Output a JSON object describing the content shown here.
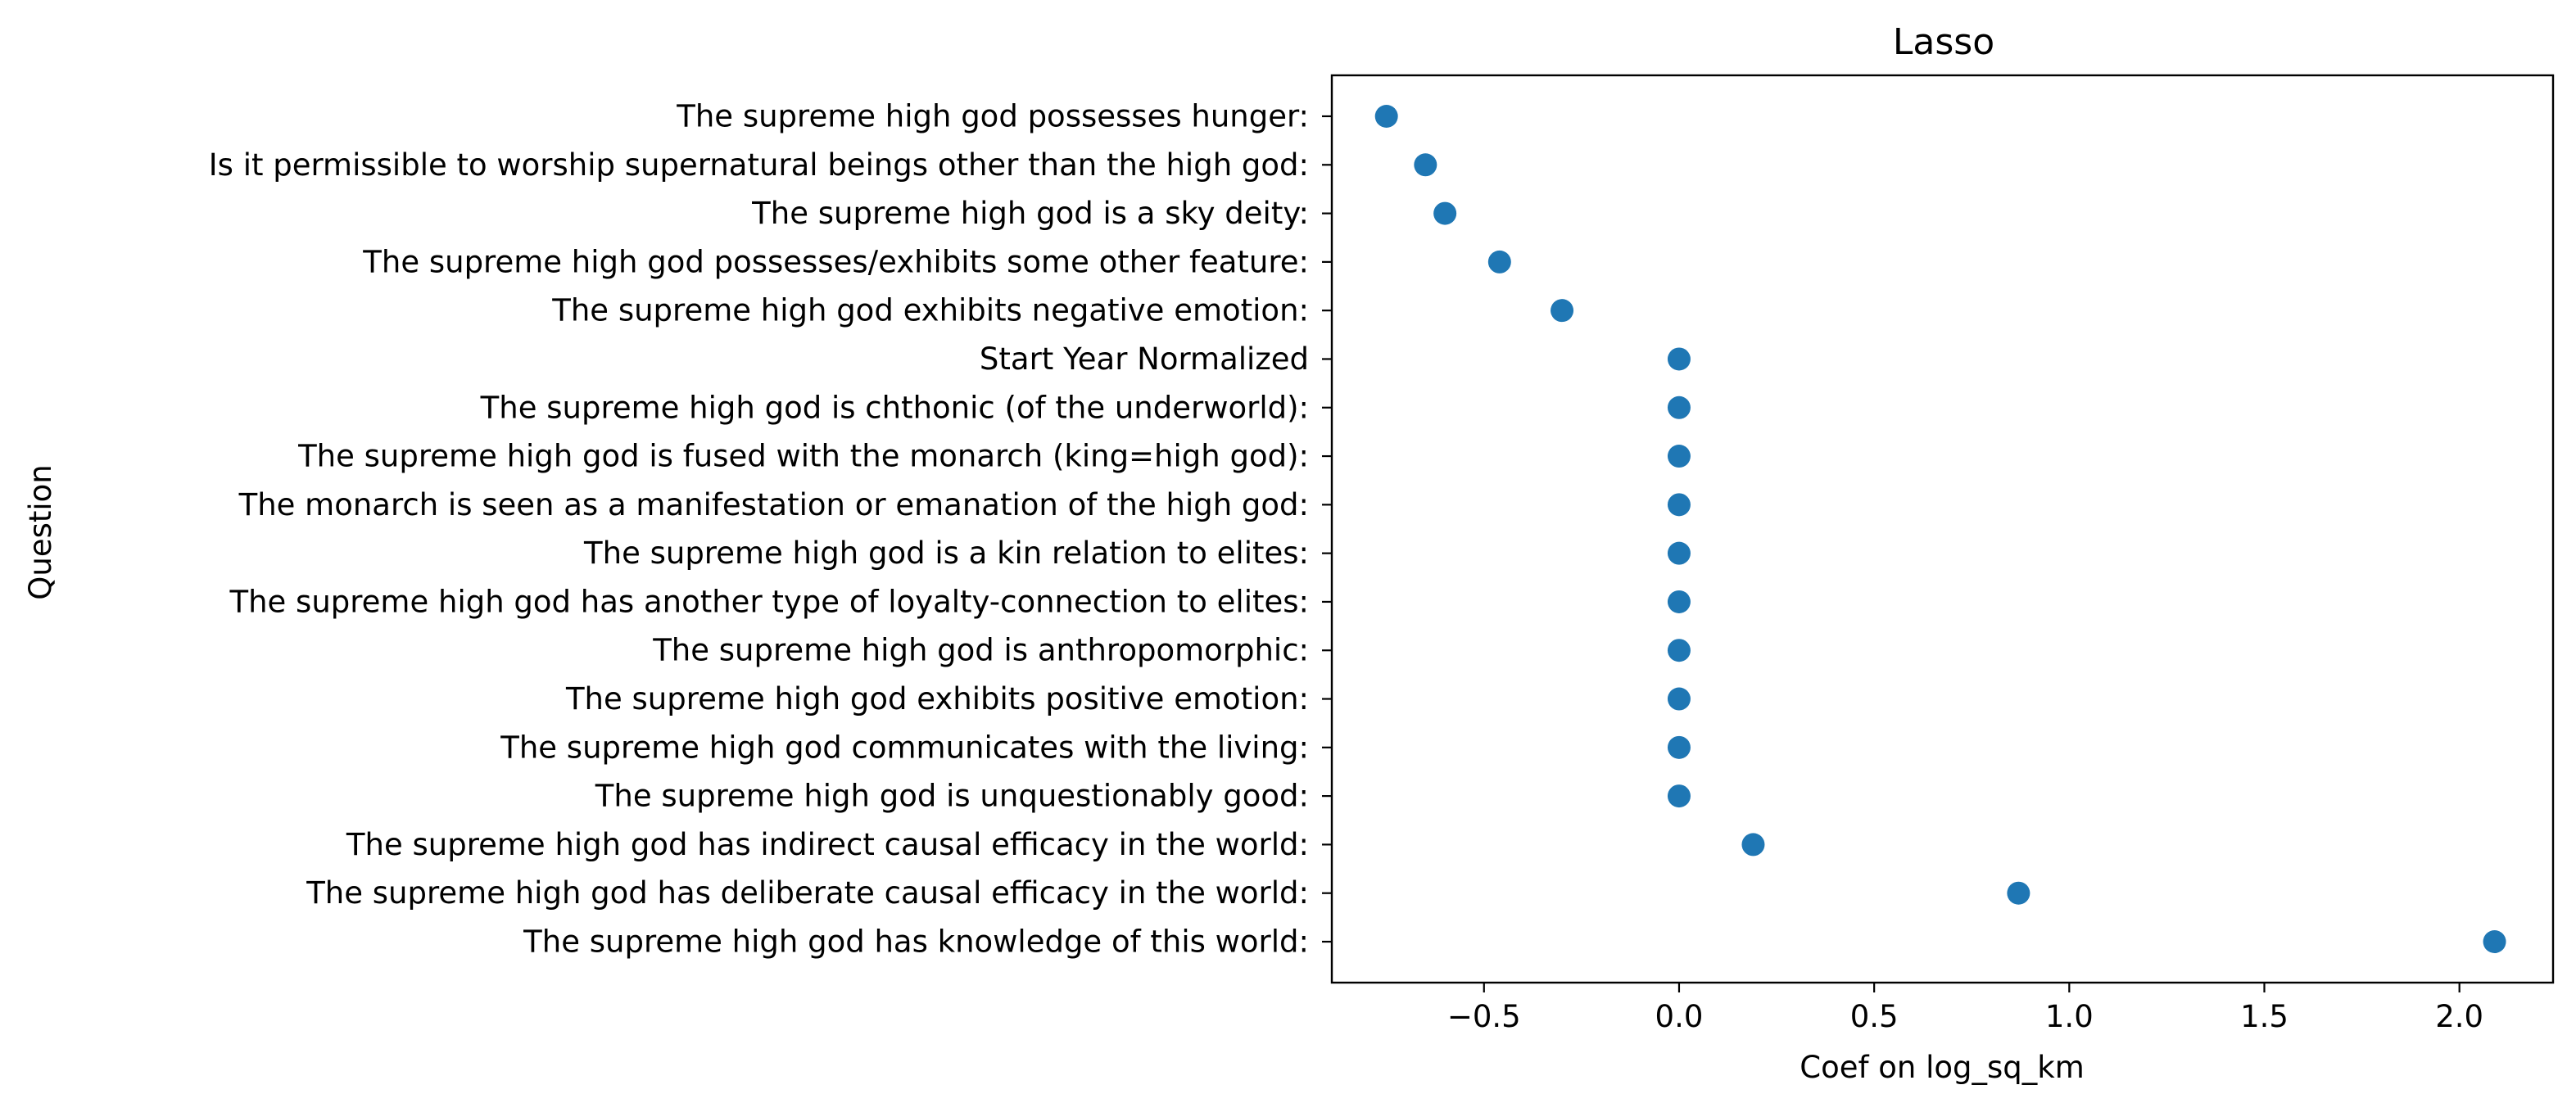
{
  "chart_data": {
    "type": "scatter",
    "title": "Lasso",
    "xlabel": "Coef on log_sq_km",
    "ylabel": "Question",
    "xlim": [
      -0.89,
      2.24
    ],
    "xticks": [
      -0.5,
      0.0,
      0.5,
      1.0,
      1.5,
      2.0
    ],
    "xtick_labels": [
      "−0.5",
      "0.0",
      "0.5",
      "1.0",
      "1.5",
      "2.0"
    ],
    "grid": false,
    "legend": "none",
    "marker_color": "#1f77b4",
    "categories": [
      "The supreme high god possesses hunger:",
      "Is it permissible to worship supernatural beings other than the high god:",
      "The supreme high god is a sky deity:",
      "The supreme high god possesses/exhibits some other feature:",
      "The supreme high god exhibits negative emotion:",
      "Start Year Normalized",
      "The supreme high god is chthonic (of the underworld):",
      "The supreme high god is fused with the monarch (king=high god):",
      "The monarch is seen as a manifestation or emanation of the high god:",
      "The supreme high god is a kin relation to elites:",
      "The supreme high god has another type of loyalty-connection to elites:",
      "The supreme high god is anthropomorphic:",
      "The supreme high god exhibits positive emotion:",
      "The supreme high god communicates with the living:",
      "The supreme high god is unquestionably good:",
      "The supreme high god has indirect causal efficacy in the  world:",
      "The supreme high god has deliberate causal efficacy in the world:",
      "The supreme high god has knowledge of this world:"
    ],
    "values": [
      -0.75,
      -0.65,
      -0.6,
      -0.46,
      -0.3,
      0.0,
      0.0,
      0.0,
      0.0,
      0.0,
      0.0,
      0.0,
      0.0,
      0.0,
      0.0,
      0.19,
      0.87,
      2.09
    ]
  }
}
